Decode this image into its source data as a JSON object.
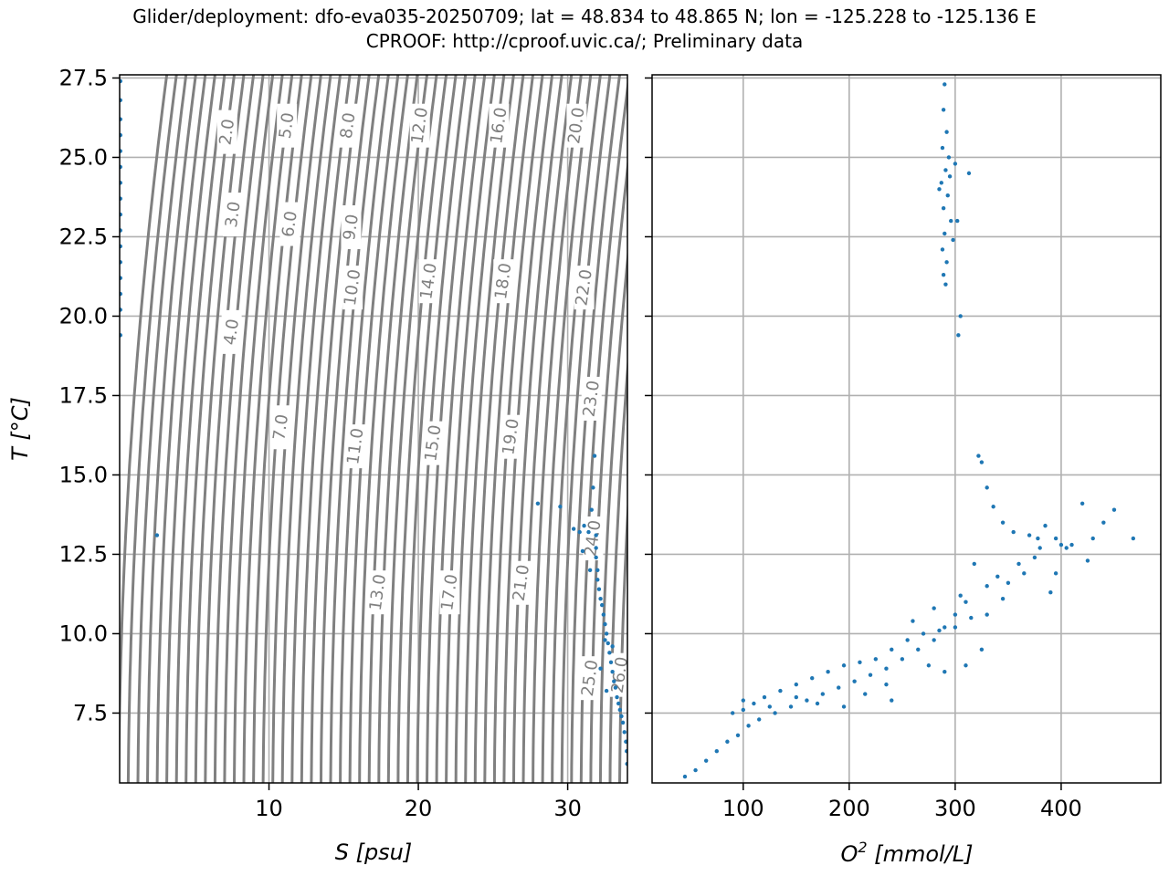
{
  "figure": {
    "title_line1": "Glider/deployment: dfo-eva035-20250709; lat = 48.834 to 48.865 N; lon = -125.228 to -125.136 E",
    "title_line2": "CPROOF: http://cproof.uvic.ca/; Preliminary data"
  },
  "colors": {
    "points": "#1f77b4",
    "contours": "#808080",
    "grid": "#b0b0b0"
  },
  "chart_data": [
    {
      "type": "scatter",
      "panel": "left",
      "xlabel": "S [psu]",
      "ylabel": "T [°C]",
      "xlim": [
        0,
        34
      ],
      "ylim": [
        5.3,
        27.6
      ],
      "xticks": [
        10,
        20,
        30
      ],
      "yticks": [
        7.5,
        10.0,
        12.5,
        15.0,
        17.5,
        20.0,
        22.5,
        25.0,
        27.5
      ],
      "ytick_labels": [
        "7.5",
        "10.0",
        "12.5",
        "15.0",
        "17.5",
        "20.0",
        "22.5",
        "25.0",
        "27.5"
      ],
      "grid": true,
      "density_contours": {
        "sigma_range": [
          0,
          26
        ],
        "step": 0.5,
        "labels": [
          {
            "text": "2.0",
            "S": 7.2,
            "T": 25.8
          },
          {
            "text": "3.0",
            "S": 7.6,
            "T": 23.2
          },
          {
            "text": "4.0",
            "S": 7.5,
            "T": 19.5
          },
          {
            "text": "5.0",
            "S": 11.2,
            "T": 26.0
          },
          {
            "text": "6.0",
            "S": 11.4,
            "T": 22.9
          },
          {
            "text": "7.0",
            "S": 10.8,
            "T": 16.5
          },
          {
            "text": "8.0",
            "S": 15.3,
            "T": 26.0
          },
          {
            "text": "9.0",
            "S": 15.5,
            "T": 22.8
          },
          {
            "text": "10.0",
            "S": 15.6,
            "T": 20.9
          },
          {
            "text": "11.0",
            "S": 15.8,
            "T": 15.9
          },
          {
            "text": "12.0",
            "S": 20.1,
            "T": 26.0
          },
          {
            "text": "13.0",
            "S": 17.3,
            "T": 11.3
          },
          {
            "text": "14.0",
            "S": 20.7,
            "T": 21.1
          },
          {
            "text": "15.0",
            "S": 21.0,
            "T": 16.0
          },
          {
            "text": "16.0",
            "S": 25.4,
            "T": 26.0
          },
          {
            "text": "17.0",
            "S": 22.1,
            "T": 11.3
          },
          {
            "text": "18.0",
            "S": 25.7,
            "T": 21.1
          },
          {
            "text": "19.0",
            "S": 26.2,
            "T": 16.2
          },
          {
            "text": "20.0",
            "S": 30.6,
            "T": 26.0
          },
          {
            "text": "21.0",
            "S": 26.9,
            "T": 11.6
          },
          {
            "text": "22.0",
            "S": 31.1,
            "T": 20.9
          },
          {
            "text": "23.0",
            "S": 31.6,
            "T": 17.4
          },
          {
            "text": "24.0",
            "S": 31.7,
            "T": 13.0
          },
          {
            "text": "25.0",
            "S": 31.5,
            "T": 8.6
          },
          {
            "text": "26.0",
            "S": 33.5,
            "T": 8.7
          }
        ]
      },
      "series": [
        {
          "points": [
            [
              0.05,
              27.4
            ],
            [
              0.05,
              26.8
            ],
            [
              0.05,
              26.2
            ],
            [
              0.05,
              25.7
            ],
            [
              0.05,
              25.2
            ],
            [
              0.05,
              24.7
            ],
            [
              0.05,
              24.2
            ],
            [
              0.05,
              23.7
            ],
            [
              0.05,
              23.2
            ],
            [
              0.05,
              22.7
            ],
            [
              0.05,
              22.2
            ],
            [
              0.05,
              21.7
            ],
            [
              0.05,
              21.2
            ],
            [
              0.05,
              20.7
            ],
            [
              0.05,
              20.2
            ],
            [
              0.05,
              19.4
            ],
            [
              2.5,
              13.1
            ],
            [
              28.0,
              14.1
            ],
            [
              29.5,
              14.0
            ],
            [
              30.4,
              13.3
            ],
            [
              30.8,
              13.2
            ],
            [
              31.1,
              13.4
            ],
            [
              31.4,
              13.2
            ],
            [
              31.6,
              13.9
            ],
            [
              31.7,
              14.6
            ],
            [
              31.8,
              15.6
            ],
            [
              31.9,
              13.1
            ],
            [
              31.9,
              12.7
            ],
            [
              31.9,
              12.4
            ],
            [
              32.0,
              12.0
            ],
            [
              32.0,
              11.7
            ],
            [
              32.1,
              11.4
            ],
            [
              32.2,
              11.1
            ],
            [
              32.3,
              10.9
            ],
            [
              32.4,
              10.6
            ],
            [
              32.5,
              10.3
            ],
            [
              32.6,
              10.0
            ],
            [
              32.7,
              9.7
            ],
            [
              32.8,
              9.4
            ],
            [
              32.9,
              9.1
            ],
            [
              33.0,
              8.8
            ],
            [
              33.1,
              8.5
            ],
            [
              33.2,
              8.3
            ],
            [
              33.3,
              8.0
            ],
            [
              33.4,
              7.8
            ],
            [
              33.5,
              7.6
            ],
            [
              33.6,
              7.4
            ],
            [
              33.7,
              7.2
            ],
            [
              33.8,
              6.9
            ],
            [
              33.9,
              6.6
            ],
            [
              33.95,
              6.3
            ],
            [
              33.98,
              5.9
            ],
            [
              31.0,
              12.6
            ],
            [
              31.5,
              12.0
            ],
            [
              32.5,
              9.8
            ],
            [
              33.0,
              9.6
            ],
            [
              32.2,
              8.9
            ],
            [
              32.6,
              8.2
            ]
          ]
        }
      ]
    },
    {
      "type": "scatter",
      "panel": "right",
      "xlabel": "O² [mmol/L]",
      "xlabel_base": "O",
      "xlabel_sup": "2",
      "xlabel_rest": " [mmol/L]",
      "xlim": [
        14,
        494
      ],
      "ylim": [
        5.3,
        27.6
      ],
      "xticks": [
        100,
        200,
        300,
        400
      ],
      "grid": true,
      "series": [
        {
          "points": [
            [
              290,
              27.3
            ],
            [
              289,
              26.5
            ],
            [
              292,
              25.8
            ],
            [
              288,
              25.3
            ],
            [
              294,
              25.0
            ],
            [
              291,
              24.6
            ],
            [
              287,
              24.2
            ],
            [
              293,
              23.8
            ],
            [
              289,
              23.4
            ],
            [
              296,
              23.0
            ],
            [
              290,
              22.6
            ],
            [
              288,
              22.1
            ],
            [
              292,
              21.7
            ],
            [
              289,
              21.3
            ],
            [
              291,
              21.0
            ],
            [
              300,
              24.8
            ],
            [
              302,
              23.0
            ],
            [
              298,
              22.4
            ],
            [
              285,
              24.0
            ],
            [
              295,
              24.4
            ],
            [
              305,
              20.0
            ],
            [
              303,
              19.4
            ],
            [
              313,
              24.5
            ],
            [
              322,
              15.6
            ],
            [
              325,
              15.4
            ],
            [
              330,
              14.6
            ],
            [
              336,
              14.0
            ],
            [
              345,
              13.5
            ],
            [
              355,
              13.2
            ],
            [
              370,
              13.1
            ],
            [
              378,
              13.0
            ],
            [
              380,
              12.7
            ],
            [
              375,
              12.4
            ],
            [
              385,
              13.4
            ],
            [
              395,
              13.0
            ],
            [
              410,
              12.8
            ],
            [
              420,
              14.1
            ],
            [
              430,
              13.0
            ],
            [
              440,
              13.5
            ],
            [
              450,
              13.9
            ],
            [
              468,
              13.0
            ],
            [
              425,
              12.3
            ],
            [
              405,
              12.7
            ],
            [
              395,
              11.9
            ],
            [
              390,
              11.3
            ],
            [
              365,
              11.9
            ],
            [
              350,
              11.6
            ],
            [
              345,
              11.1
            ],
            [
              330,
              11.5
            ],
            [
              318,
              12.2
            ],
            [
              310,
              11.0
            ],
            [
              300,
              10.6
            ],
            [
              290,
              10.2
            ],
            [
              280,
              9.8
            ],
            [
              265,
              9.5
            ],
            [
              250,
              9.2
            ],
            [
              235,
              8.9
            ],
            [
              220,
              8.7
            ],
            [
              205,
              8.5
            ],
            [
              190,
              8.3
            ],
            [
              175,
              8.1
            ],
            [
              160,
              7.9
            ],
            [
              145,
              7.7
            ],
            [
              130,
              7.5
            ],
            [
              115,
              7.3
            ],
            [
              105,
              7.1
            ],
            [
              95,
              6.8
            ],
            [
              85,
              6.6
            ],
            [
              75,
              6.3
            ],
            [
              65,
              6.0
            ],
            [
              55,
              5.7
            ],
            [
              45,
              5.5
            ],
            [
              90,
              7.5
            ],
            [
              100,
              7.6
            ],
            [
              110,
              7.8
            ],
            [
              120,
              8.0
            ],
            [
              135,
              8.2
            ],
            [
              150,
              8.4
            ],
            [
              165,
              8.6
            ],
            [
              180,
              8.8
            ],
            [
              195,
              9.0
            ],
            [
              210,
              9.1
            ],
            [
              225,
              9.2
            ],
            [
              240,
              9.5
            ],
            [
              255,
              9.8
            ],
            [
              270,
              10.0
            ],
            [
              285,
              10.1
            ],
            [
              300,
              10.2
            ],
            [
              315,
              10.5
            ],
            [
              330,
              10.6
            ],
            [
              310,
              9.0
            ],
            [
              290,
              8.8
            ],
            [
              275,
              9.0
            ],
            [
              235,
              8.4
            ],
            [
              215,
              8.1
            ],
            [
              195,
              7.7
            ],
            [
              170,
              7.8
            ],
            [
              150,
              8.0
            ],
            [
              125,
              7.7
            ],
            [
              100,
              7.9
            ],
            [
              240,
              7.9
            ],
            [
              325,
              9.5
            ],
            [
              260,
              10.4
            ],
            [
              280,
              10.8
            ],
            [
              305,
              11.2
            ],
            [
              340,
              11.8
            ],
            [
              360,
              12.2
            ],
            [
              400,
              12.8
            ]
          ]
        }
      ]
    }
  ]
}
